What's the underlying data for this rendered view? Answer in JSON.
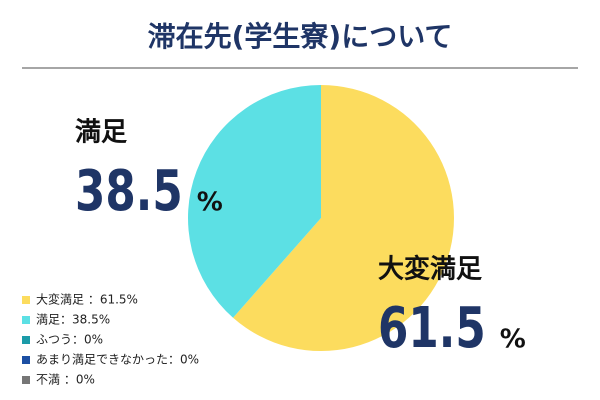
{
  "chart_data": {
    "type": "pie",
    "title": "滞在先(学生寮)について",
    "categories": [
      "大変満足",
      "満足",
      "ふつう",
      "あまり満足できなかった",
      "不満"
    ],
    "values": [
      61.5,
      38.5,
      0,
      0,
      0
    ],
    "colors": [
      "#fcdc5e",
      "#5ce0e4",
      "#1b9ba8",
      "#1c4fa3",
      "#767676"
    ],
    "legend_labels": [
      "大変満足 ：61.5%",
      "満足：38.5%",
      "ふつう：0%",
      "あまり満足できなかった：0%",
      "不満 ：0%"
    ],
    "unit": "%"
  }
}
